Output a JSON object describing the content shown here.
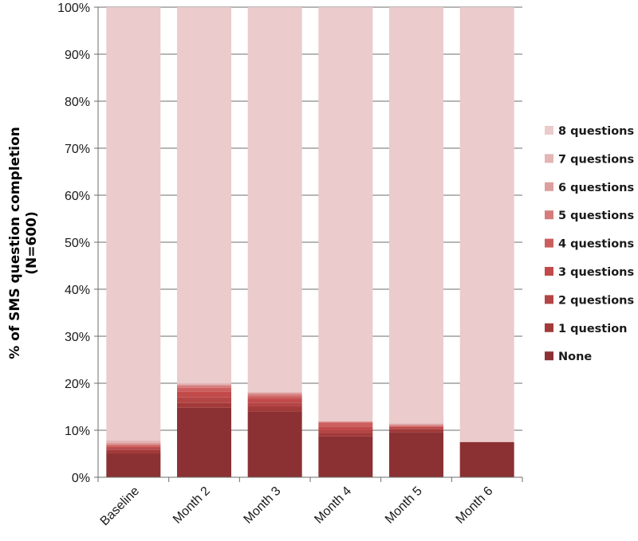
{
  "chart_data": {
    "type": "bar",
    "stacked": true,
    "percent_stacked": true,
    "ylabel_line1": "% of SMS question completion",
    "ylabel_line2": "(N=600)",
    "ylim": [
      0,
      100
    ],
    "yticks": [
      "0%",
      "10%",
      "20%",
      "30%",
      "40%",
      "50%",
      "60%",
      "70%",
      "80%",
      "90%",
      "100%"
    ],
    "categories": [
      "Baseline",
      "Month 2",
      "Month 3",
      "Month 4",
      "Month 5",
      "Month 6"
    ],
    "legend_position": "right",
    "grid": true,
    "series": [
      {
        "name": "None",
        "color": "#8b3133",
        "values": [
          5.0,
          14.8,
          14.0,
          8.7,
          9.6,
          7.5
        ]
      },
      {
        "name": "1 question",
        "color": "#a23a3a",
        "values": [
          0.8,
          1.0,
          1.0,
          0.7,
          0.6,
          0.0
        ]
      },
      {
        "name": "2 questions",
        "color": "#b44545",
        "values": [
          0.4,
          1.2,
          0.9,
          0.6,
          0.3,
          0.0
        ]
      },
      {
        "name": "3 questions",
        "color": "#c24a4a",
        "values": [
          0.3,
          1.2,
          0.8,
          0.8,
          0.2,
          0.0
        ]
      },
      {
        "name": "4 questions",
        "color": "#cd5e5e",
        "values": [
          0.3,
          0.8,
          0.5,
          0.8,
          0.2,
          0.0
        ]
      },
      {
        "name": "5 questions",
        "color": "#d57b7b",
        "values": [
          0.3,
          0.5,
          0.5,
          0.2,
          0.2,
          0.0
        ]
      },
      {
        "name": "6 questions",
        "color": "#dd9e9e",
        "values": [
          0.3,
          0.3,
          0.3,
          0.1,
          0.2,
          0.0
        ]
      },
      {
        "name": "7 questions",
        "color": "#e3b5b5",
        "values": [
          0.4,
          0.2,
          0.2,
          0.1,
          0.2,
          0.0
        ]
      },
      {
        "name": "8 questions",
        "color": "#ebcbcb",
        "values": [
          92.2,
          80.0,
          81.8,
          88.0,
          88.5,
          92.5
        ]
      }
    ]
  }
}
